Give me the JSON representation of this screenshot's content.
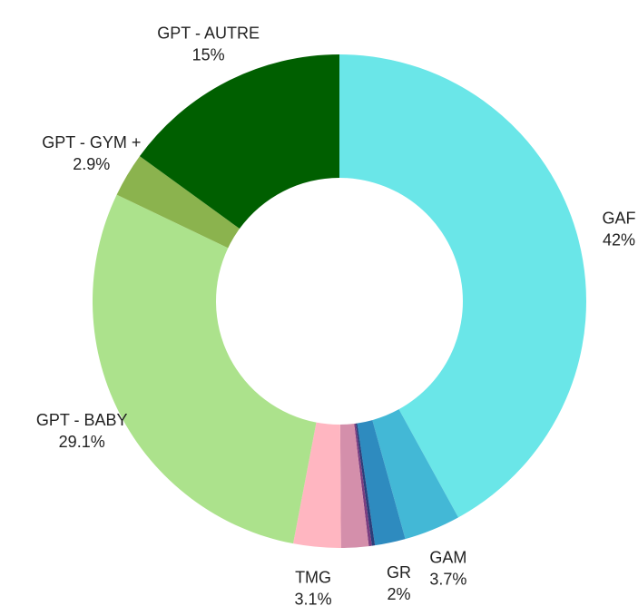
{
  "chart_data": {
    "type": "donut",
    "categories": [
      "GAF",
      "GAM",
      "GR",
      null,
      null,
      null,
      "TMG",
      "GPT - BABY",
      "GPT - GYM +",
      "GPT - AUTRE"
    ],
    "values": [
      42,
      3.7,
      2,
      0.2,
      0.2,
      1.8,
      3.1,
      29.1,
      2.9,
      15
    ],
    "value_labels": [
      "42%",
      "3.7%",
      "2%",
      null,
      null,
      null,
      "3.1%",
      "29.1%",
      "2.9%",
      "15%"
    ],
    "colors": [
      "#6ae6e8",
      "#43b8d6",
      "#2e8bbf",
      "#2c3e7a",
      "#7a3e80",
      "#d48fab",
      "#ffb6c1",
      "#ace28c",
      "#8bb34e",
      "#005f00"
    ]
  }
}
